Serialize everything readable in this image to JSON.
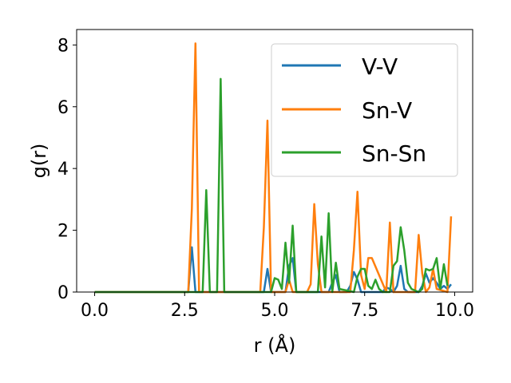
{
  "chart_data": {
    "type": "line",
    "xlabel": "r (Å)",
    "ylabel": "g(r)",
    "xlim": [
      -0.5,
      10.5
    ],
    "ylim": [
      0,
      8.5
    ],
    "xticks": [
      0.0,
      2.5,
      5.0,
      7.5,
      10.0
    ],
    "xtick_labels": [
      "0.0",
      "2.5",
      "5.0",
      "7.5",
      "10.0"
    ],
    "yticks": [
      0,
      2,
      4,
      6,
      8
    ],
    "ytick_labels": [
      "0",
      "2",
      "4",
      "6",
      "8"
    ],
    "grid": false,
    "legend_position": "top-right",
    "series": [
      {
        "name": "V-V",
        "color": "#1f77b4",
        "x": [
          0.0,
          2.6,
          2.7,
          2.8,
          4.7,
          4.8,
          4.9,
          5.3,
          5.4,
          5.5,
          5.6,
          6.5,
          6.6,
          6.7,
          6.8,
          7.0,
          7.1,
          7.2,
          7.3,
          7.4,
          8.0,
          8.1,
          8.2,
          8.3,
          8.4,
          8.5,
          8.6,
          8.7,
          9.0,
          9.1,
          9.2,
          9.3,
          9.4,
          9.5,
          9.6,
          9.7,
          9.8,
          9.9
        ],
        "y": [
          0,
          0,
          1.45,
          0,
          0,
          0.75,
          0,
          0,
          0.85,
          1.1,
          0,
          0,
          0.3,
          0.55,
          0,
          0,
          0.2,
          0.65,
          0.4,
          0,
          0,
          0.15,
          0.1,
          0,
          0.2,
          0.85,
          0.1,
          0,
          0,
          0.2,
          0.6,
          0.3,
          0.45,
          0.3,
          0.1,
          0.2,
          0.1,
          0.25
        ]
      },
      {
        "name": "Sn-V",
        "color": "#ff7f0e",
        "x": [
          0.0,
          2.6,
          2.7,
          2.8,
          2.9,
          4.6,
          4.7,
          4.8,
          4.9,
          5.3,
          5.4,
          5.5,
          5.9,
          6.0,
          6.1,
          6.2,
          6.3,
          7.1,
          7.2,
          7.3,
          7.4,
          7.5,
          7.6,
          7.7,
          8.1,
          8.2,
          8.3,
          8.9,
          9.0,
          9.1,
          9.2,
          9.3,
          9.4,
          9.5,
          9.8,
          9.9
        ],
        "y": [
          0,
          0,
          2.7,
          8.05,
          0,
          0,
          2.1,
          5.55,
          0,
          0,
          0.4,
          0,
          0,
          0.25,
          2.85,
          0.9,
          0,
          0,
          1.35,
          3.25,
          0.55,
          0.1,
          1.1,
          1.1,
          0,
          2.25,
          0,
          0,
          1.85,
          0.6,
          0,
          0.15,
          0.75,
          0.1,
          0,
          2.45
        ]
      },
      {
        "name": "Sn-Sn",
        "color": "#2ca02c",
        "x": [
          0.0,
          3.0,
          3.1,
          3.2,
          3.4,
          3.5,
          3.6,
          4.9,
          5.0,
          5.1,
          5.2,
          5.3,
          5.4,
          5.5,
          5.6,
          6.2,
          6.3,
          6.4,
          6.5,
          6.6,
          6.7,
          6.8,
          7.2,
          7.3,
          7.4,
          7.5,
          7.6,
          7.7,
          7.8,
          7.9,
          8.0,
          8.2,
          8.3,
          8.4,
          8.5,
          8.6,
          8.7,
          8.8,
          9.0,
          9.1,
          9.2,
          9.3,
          9.4,
          9.5,
          9.6,
          9.7,
          9.8
        ],
        "y": [
          0,
          0,
          3.3,
          0,
          0,
          6.9,
          0,
          0,
          0.45,
          0.4,
          0.1,
          1.6,
          0.3,
          2.15,
          0,
          0,
          1.8,
          0.15,
          2.55,
          0,
          0.95,
          0.1,
          0,
          0.5,
          0.75,
          0.75,
          0.2,
          0.1,
          0.4,
          0.1,
          0,
          0,
          0.85,
          1.0,
          2.1,
          1.35,
          0.3,
          0.1,
          0,
          0.1,
          0.75,
          0.7,
          0.75,
          1.1,
          0.1,
          0.9,
          0.2
        ]
      }
    ]
  }
}
